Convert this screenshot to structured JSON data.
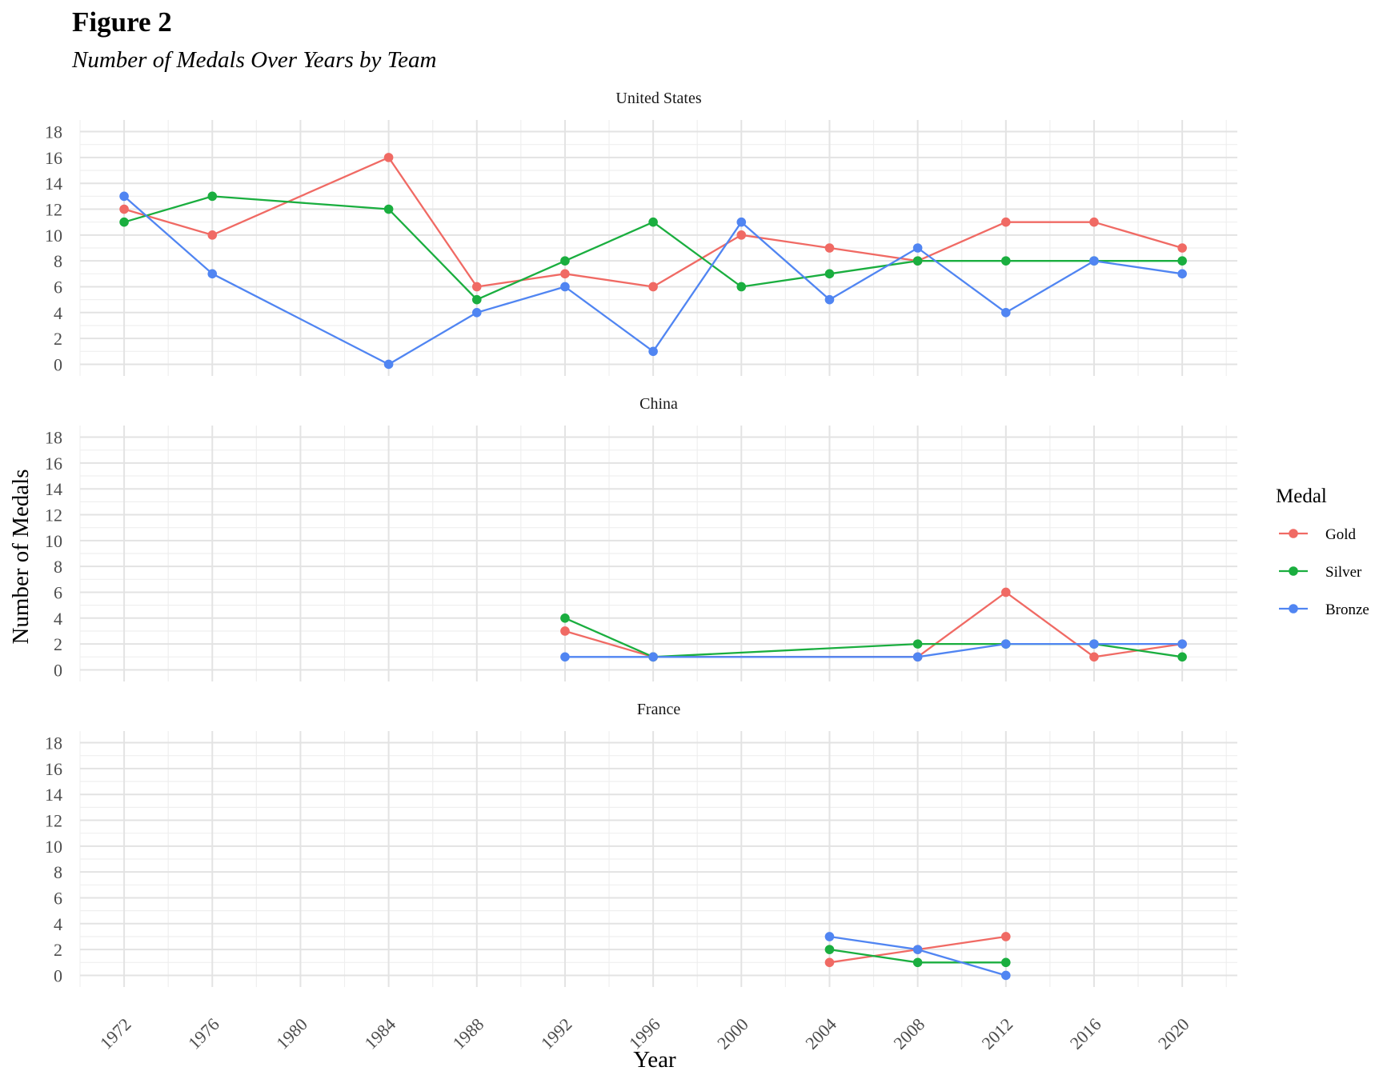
{
  "figure": {
    "title": "Figure 2",
    "subtitle": "Number of Medals Over Years by Team"
  },
  "chart_data": {
    "type": "line",
    "facets": [
      "United States",
      "China",
      "France"
    ],
    "xlabel": "Year",
    "ylabel": "Number of Medals",
    "x_ticks": [
      1972,
      1976,
      1980,
      1984,
      1988,
      1992,
      1996,
      2000,
      2004,
      2008,
      2012,
      2016,
      2020
    ],
    "y_ticks": [
      0,
      2,
      4,
      6,
      8,
      10,
      12,
      14,
      16,
      18
    ],
    "xlim": [
      1970,
      2022.5
    ],
    "ylim": [
      -0.9,
      18.9
    ],
    "grid": true,
    "legend": {
      "title": "Medal",
      "position": "right",
      "entries": [
        "Gold",
        "Silver",
        "Bronze"
      ]
    },
    "colors": {
      "Gold": "#F06A64",
      "Silver": "#1AAE3F",
      "Bronze": "#5085F2"
    },
    "series": [
      {
        "team": "United States",
        "medal": "Gold",
        "x": [
          1972,
          1976,
          1984,
          1988,
          1992,
          1996,
          2000,
          2004,
          2008,
          2012,
          2016,
          2020
        ],
        "y": [
          12,
          10,
          16,
          6,
          7,
          6,
          10,
          9,
          8,
          11,
          11,
          9
        ]
      },
      {
        "team": "United States",
        "medal": "Silver",
        "x": [
          1972,
          1976,
          1984,
          1988,
          1992,
          1996,
          2000,
          2004,
          2008,
          2012,
          2016,
          2020
        ],
        "y": [
          11,
          13,
          12,
          5,
          8,
          11,
          6,
          7,
          8,
          8,
          8,
          8
        ]
      },
      {
        "team": "United States",
        "medal": "Bronze",
        "x": [
          1972,
          1976,
          1984,
          1988,
          1992,
          1996,
          2000,
          2004,
          2008,
          2012,
          2016,
          2020
        ],
        "y": [
          13,
          7,
          0,
          4,
          6,
          1,
          11,
          5,
          9,
          4,
          8,
          7
        ]
      },
      {
        "team": "China",
        "medal": "Gold",
        "x": [
          1992,
          1996,
          2008,
          2012,
          2016,
          2020
        ],
        "y": [
          3,
          1,
          1,
          6,
          1,
          2
        ]
      },
      {
        "team": "China",
        "medal": "Silver",
        "x": [
          1992,
          1996,
          2008,
          2012,
          2016,
          2020
        ],
        "y": [
          4,
          1,
          2,
          2,
          2,
          1
        ]
      },
      {
        "team": "China",
        "medal": "Bronze",
        "x": [
          1992,
          1996,
          2008,
          2012,
          2016,
          2020
        ],
        "y": [
          1,
          1,
          1,
          2,
          2,
          2
        ]
      },
      {
        "team": "France",
        "medal": "Gold",
        "x": [
          2004,
          2008,
          2012
        ],
        "y": [
          1,
          2,
          3
        ]
      },
      {
        "team": "France",
        "medal": "Silver",
        "x": [
          2004,
          2008,
          2012
        ],
        "y": [
          2,
          1,
          1
        ]
      },
      {
        "team": "France",
        "medal": "Bronze",
        "x": [
          2004,
          2008,
          2012
        ],
        "y": [
          3,
          2,
          0
        ]
      }
    ]
  }
}
